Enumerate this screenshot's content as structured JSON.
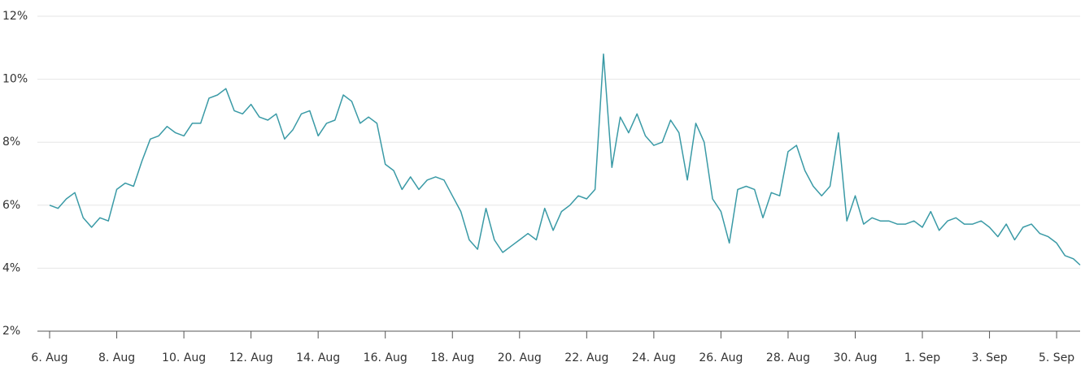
{
  "chart_data": {
    "type": "line",
    "x": [
      0,
      0.25,
      0.5,
      0.75,
      1,
      1.25,
      1.5,
      1.75,
      2,
      2.25,
      2.5,
      2.75,
      3,
      3.25,
      3.5,
      3.75,
      4,
      4.25,
      4.5,
      4.75,
      5,
      5.25,
      5.5,
      5.75,
      6,
      6.25,
      6.5,
      6.75,
      7,
      7.25,
      7.5,
      7.75,
      8,
      8.25,
      8.5,
      8.75,
      9,
      9.25,
      9.5,
      9.75,
      10,
      10.25,
      10.5,
      10.75,
      11,
      11.25,
      11.5,
      11.75,
      12,
      12.25,
      12.5,
      12.75,
      13,
      13.25,
      13.5,
      13.75,
      14,
      14.25,
      14.5,
      14.75,
      15,
      15.25,
      15.5,
      15.75,
      16,
      16.25,
      16.5,
      16.75,
      17,
      17.25,
      17.5,
      17.75,
      18,
      18.25,
      18.5,
      18.75,
      19,
      19.25,
      19.5,
      19.75,
      20,
      20.25,
      20.5,
      20.75,
      21,
      21.25,
      21.5,
      21.75,
      22,
      22.25,
      22.5,
      22.75,
      23,
      23.25,
      23.5,
      23.75,
      24,
      24.25,
      24.5,
      24.75,
      25,
      25.25,
      25.5,
      25.75,
      26,
      26.25,
      26.5,
      26.75,
      27,
      27.25,
      27.5,
      27.75,
      28,
      28.25,
      28.5,
      28.75,
      29,
      29.25,
      29.5,
      29.75,
      30,
      30.25,
      30.5,
      30.7
    ],
    "series": [
      {
        "color": "#3a9aa6",
        "values": [
          6.0,
          5.9,
          6.2,
          6.4,
          5.6,
          5.3,
          5.6,
          5.5,
          6.5,
          6.7,
          6.6,
          7.4,
          8.1,
          8.2,
          8.5,
          8.3,
          8.2,
          8.6,
          8.6,
          9.4,
          9.5,
          9.7,
          9.0,
          8.9,
          9.2,
          8.8,
          8.7,
          8.9,
          8.1,
          8.4,
          8.9,
          9.0,
          8.2,
          8.6,
          8.7,
          9.5,
          9.3,
          8.6,
          8.8,
          8.6,
          7.3,
          7.1,
          6.5,
          6.9,
          6.5,
          6.8,
          6.9,
          6.8,
          6.3,
          5.8,
          4.9,
          4.6,
          5.9,
          4.9,
          4.5,
          4.7,
          4.9,
          5.1,
          4.9,
          5.9,
          5.2,
          5.8,
          6.0,
          6.3,
          6.2,
          6.5,
          10.8,
          7.2,
          8.8,
          8.3,
          8.9,
          8.2,
          7.9,
          8.0,
          8.7,
          8.3,
          6.8,
          8.6,
          8.0,
          6.2,
          5.8,
          4.8,
          6.5,
          6.6,
          6.5,
          5.6,
          6.4,
          6.3,
          7.7,
          7.9,
          7.1,
          6.6,
          6.3,
          6.6,
          8.3,
          5.5,
          6.3,
          5.4,
          5.6,
          5.5,
          5.5,
          5.4,
          5.4,
          5.5,
          5.3,
          5.8,
          5.2,
          5.5,
          5.6,
          5.4,
          5.4,
          5.5,
          5.3,
          5.0,
          5.4,
          4.9,
          5.3,
          5.4,
          5.1,
          5.0,
          4.8,
          4.4,
          4.3,
          4.1
        ]
      }
    ],
    "xlim": [
      0,
      30.7
    ],
    "xticks": [
      {
        "value": 0,
        "label": "6. Aug"
      },
      {
        "value": 2,
        "label": "8. Aug"
      },
      {
        "value": 4,
        "label": "10. Aug"
      },
      {
        "value": 6,
        "label": "12. Aug"
      },
      {
        "value": 8,
        "label": "14. Aug"
      },
      {
        "value": 10,
        "label": "16. Aug"
      },
      {
        "value": 12,
        "label": "18. Aug"
      },
      {
        "value": 14,
        "label": "20. Aug"
      },
      {
        "value": 16,
        "label": "22. Aug"
      },
      {
        "value": 18,
        "label": "24. Aug"
      },
      {
        "value": 20,
        "label": "26. Aug"
      },
      {
        "value": 22,
        "label": "28. Aug"
      },
      {
        "value": 24,
        "label": "30. Aug"
      },
      {
        "value": 26,
        "label": "1. Sep"
      },
      {
        "value": 28,
        "label": "3. Sep"
      },
      {
        "value": 30,
        "label": "5. Sep"
      }
    ],
    "ylim": [
      2,
      12
    ],
    "yticks": [
      {
        "value": 2,
        "label": "2%"
      },
      {
        "value": 4,
        "label": "4%"
      },
      {
        "value": 6,
        "label": "6%"
      },
      {
        "value": 8,
        "label": "8%"
      },
      {
        "value": 10,
        "label": "10%"
      },
      {
        "value": 12,
        "label": "12%"
      }
    ],
    "grid": true
  }
}
